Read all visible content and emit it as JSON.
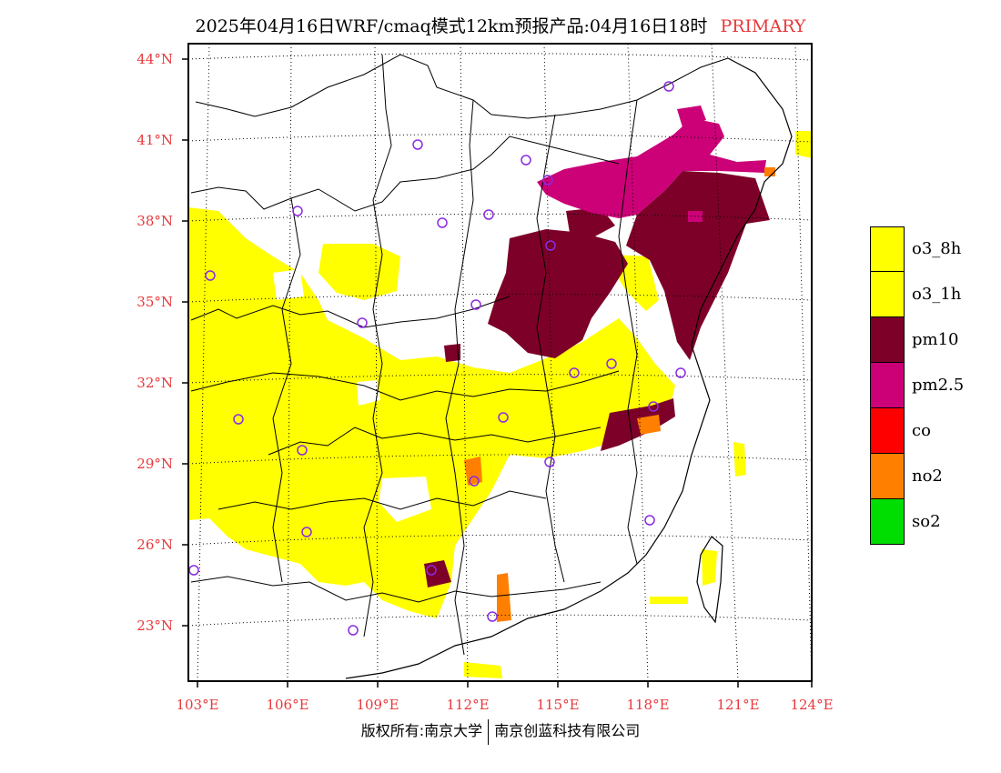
{
  "title": {
    "main": "2025年04月16日WRF/cmaq模式12km预报产品:04月16日18时",
    "tag": "PRIMARY"
  },
  "axes": {
    "lat_labels": [
      "44°N",
      "41°N",
      "38°N",
      "35°N",
      "32°N",
      "29°N",
      "26°N",
      "23°N"
    ],
    "lon_labels": [
      "103°E",
      "106°E",
      "109°E",
      "112°E",
      "115°E",
      "118°E",
      "121°E",
      "124°E"
    ]
  },
  "legend": {
    "items": [
      {
        "label": "o3_8h",
        "color": "#ffff00"
      },
      {
        "label": "o3_1h",
        "color": "#ffff00"
      },
      {
        "label": "pm10",
        "color": "#7d0029"
      },
      {
        "label": "pm2.5",
        "color": "#cc0077"
      },
      {
        "label": "co",
        "color": "#ff0000"
      },
      {
        "label": "no2",
        "color": "#ff7f00"
      },
      {
        "label": "so2",
        "color": "#00dd00"
      }
    ]
  },
  "colors": {
    "label_red": "#e8383b",
    "station_marker": "#8a2be2",
    "boundary": "#000000"
  },
  "footer": {
    "left": "版权所有:南京大学",
    "right": "南京创蓝科技有限公司"
  }
}
